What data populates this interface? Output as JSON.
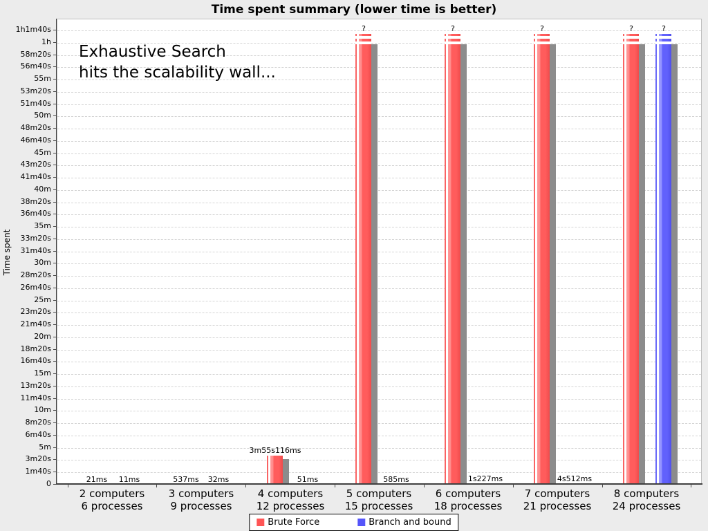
{
  "title": "Time spent summary (lower time is better)",
  "annotation": {
    "line1": "Exhaustive Search",
    "line2": "hits the scalability wall..."
  },
  "y_axis": {
    "label": "Time spent"
  },
  "legend": [
    {
      "label": "Brute Force",
      "color": "#ff5555"
    },
    {
      "label": "Branch and bound",
      "color": "#5555fa"
    }
  ],
  "chart_data": {
    "type": "bar",
    "title": "Time spent summary (lower time is better)",
    "ylabel": "Time spent",
    "grid": "horizontal-dashed",
    "legend_position": "bottom",
    "ylim_seconds": [
      0,
      3700
    ],
    "y_tick_labels": [
      "0",
      "1m40s",
      "3m20s",
      "5m",
      "6m40s",
      "8m20s",
      "10m",
      "11m40s",
      "13m20s",
      "15m",
      "16m40s",
      "18m20s",
      "20m",
      "21m40s",
      "23m20s",
      "25m",
      "26m40s",
      "28m20s",
      "30m",
      "31m40s",
      "33m20s",
      "35m",
      "36m40s",
      "38m20s",
      "40m",
      "41m40s",
      "43m20s",
      "45m",
      "46m40s",
      "48m20s",
      "50m",
      "51m40s",
      "53m20s",
      "55m",
      "56m40s",
      "58m20s",
      "1h",
      "1h1m40s"
    ],
    "categories": [
      {
        "line1": "2 computers",
        "line2": "6 processes"
      },
      {
        "line1": "3 computers",
        "line2": "9 processes"
      },
      {
        "line1": "4 computers",
        "line2": "12 processes"
      },
      {
        "line1": "5 computers",
        "line2": "15 processes"
      },
      {
        "line1": "6 computers",
        "line2": "18 processes"
      },
      {
        "line1": "7 computers",
        "line2": "21 processes"
      },
      {
        "line1": "8 computers",
        "line2": "24 processes"
      }
    ],
    "series": [
      {
        "name": "Brute Force",
        "color": "red",
        "values": [
          {
            "label": "21ms",
            "seconds": 0.021,
            "failed": false
          },
          {
            "label": "537ms",
            "seconds": 0.537,
            "failed": false
          },
          {
            "label": "3m55s116ms",
            "seconds": 235.116,
            "failed": false
          },
          {
            "label": "?",
            "seconds": null,
            "failed": true
          },
          {
            "label": "?",
            "seconds": null,
            "failed": true
          },
          {
            "label": "?",
            "seconds": null,
            "failed": true
          },
          {
            "label": "?",
            "seconds": null,
            "failed": true
          }
        ]
      },
      {
        "name": "Branch and bound",
        "color": "blue",
        "values": [
          {
            "label": "11ms",
            "seconds": 0.011,
            "failed": false
          },
          {
            "label": "32ms",
            "seconds": 0.032,
            "failed": false
          },
          {
            "label": "51ms",
            "seconds": 0.051,
            "failed": false
          },
          {
            "label": "585ms",
            "seconds": 0.585,
            "failed": false
          },
          {
            "label": "1s227ms",
            "seconds": 1.227,
            "failed": false
          },
          {
            "label": "4s512ms",
            "seconds": 4.512,
            "failed": false
          },
          {
            "label": "?",
            "seconds": null,
            "failed": true
          }
        ]
      }
    ]
  }
}
